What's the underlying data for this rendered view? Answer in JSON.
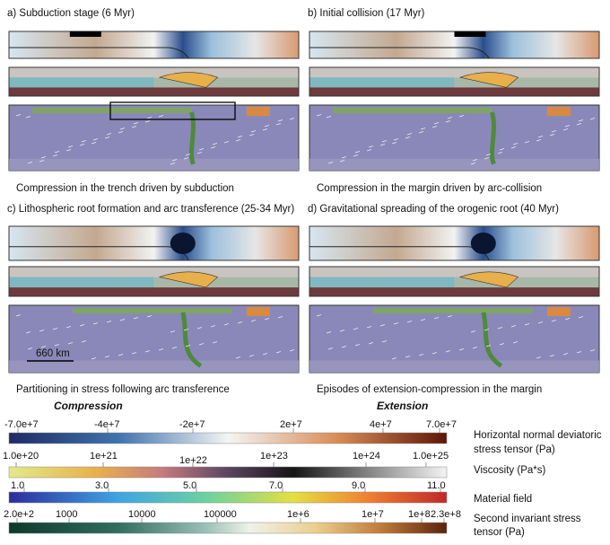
{
  "panels": [
    {
      "title": "a) Subduction stage (6 Myr)",
      "caption": "Compression in the trench driven by subduction"
    },
    {
      "title": "b) Initial collision (17 Myr)",
      "caption": "Compression in the margin driven by arc-collision"
    },
    {
      "title": "c) Lithospheric root formation and arc transference (25-34 Myr)",
      "caption": "Partitioning in stress following arc transference"
    },
    {
      "title": "d) Gravitational spreading of the orogenic root (40 Myr)",
      "caption": "Episodes of extension-compression in the margin"
    }
  ],
  "scale_bar": "660 km",
  "legend": {
    "compression": "Compression",
    "extension": "Extension",
    "colorbars": [
      {
        "ticks": [
          "-7.0e+7",
          "-4e+7",
          "-2e+7",
          "2e+7",
          "4e+7",
          "7.0e+7"
        ],
        "title": [
          "Horizontal normal deviatoric",
          "stress tensor (Pa)"
        ]
      },
      {
        "ticks": [
          "1.0e+20",
          "1e+21",
          "1e+22",
          "1e+23",
          "1e+24",
          "1.0e+25"
        ],
        "title": [
          "Viscosity (Pa*s)"
        ]
      },
      {
        "ticks": [
          "1.0",
          "3.0",
          "5.0",
          "7.0",
          "9.0",
          "11.0"
        ],
        "title": [
          "Material field"
        ]
      },
      {
        "ticks": [
          "2.0e+2",
          "1000",
          "10000",
          "100000",
          "1e+6",
          "1e+7",
          "1e+8",
          "2.3e+8"
        ],
        "title": [
          "Second invariant stress",
          "tensor (Pa)"
        ]
      }
    ]
  }
}
